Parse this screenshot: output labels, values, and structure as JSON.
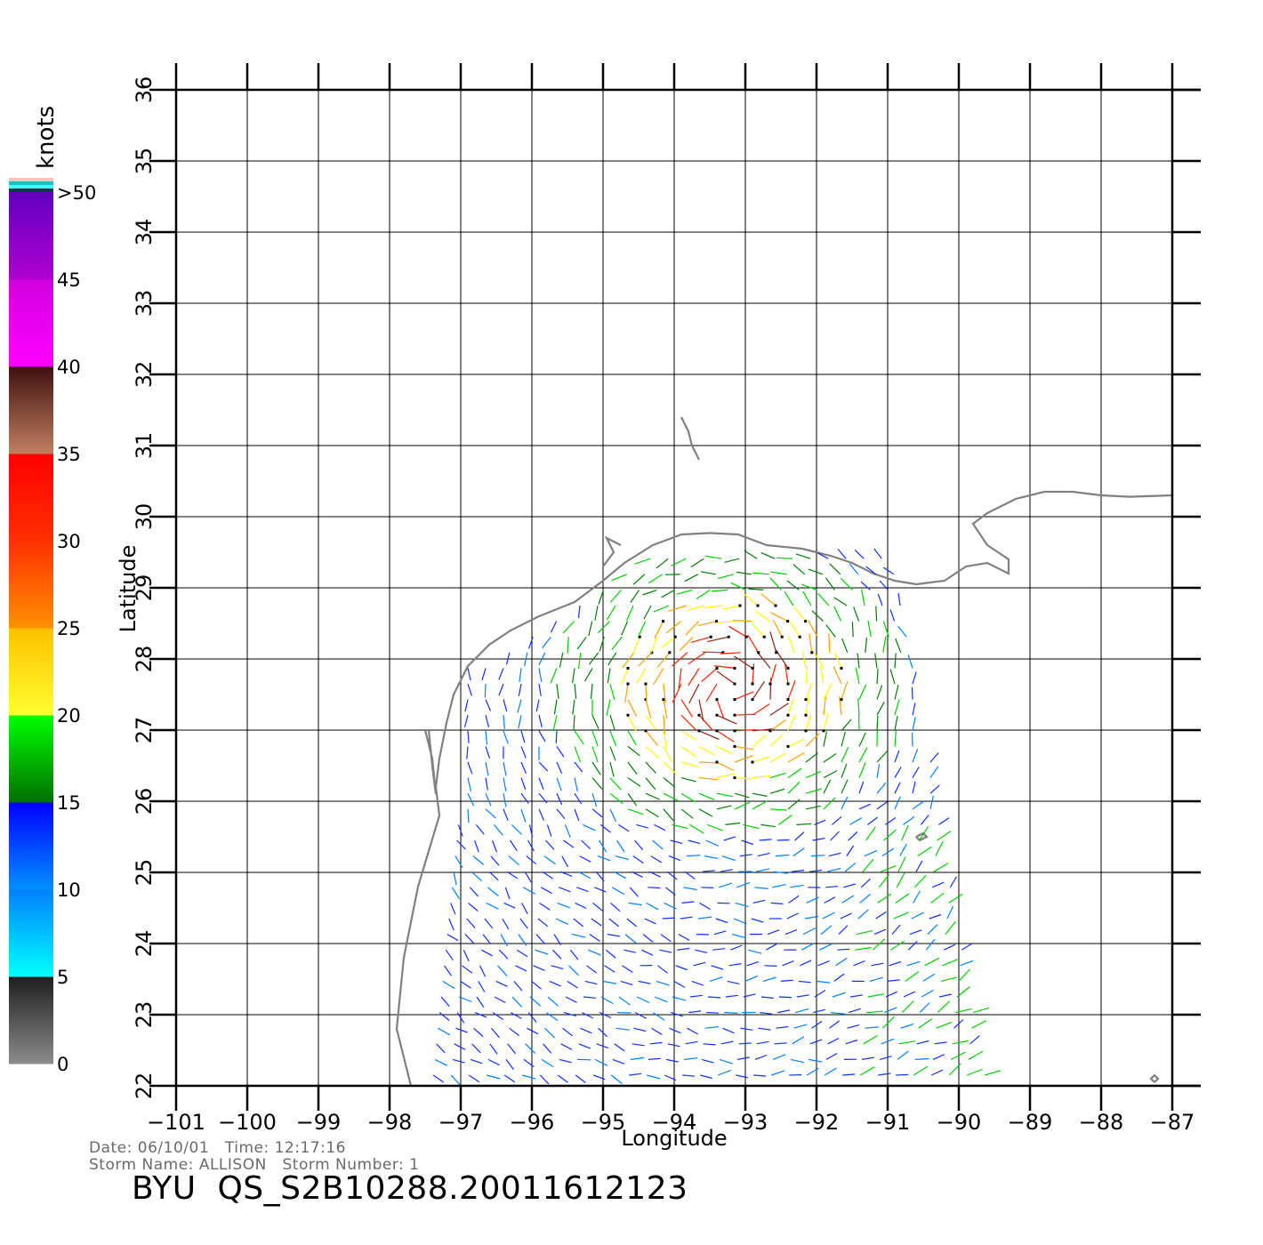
{
  "map": {
    "xlabel": "Longitude",
    "ylabel": "Latitude",
    "lon_range": [
      -101,
      -87
    ],
    "lat_range": [
      22,
      36
    ],
    "lon_ticks": [
      "−101",
      "−100",
      "−99",
      "−98",
      "−97",
      "−96",
      "−95",
      "−94",
      "−93",
      "−92",
      "−91",
      "−90",
      "−89",
      "−88",
      "−87"
    ],
    "lat_ticks": [
      "22",
      "23",
      "24",
      "25",
      "26",
      "27",
      "28",
      "29",
      "30",
      "31",
      "32",
      "33",
      "34",
      "35",
      "36"
    ],
    "grid": true,
    "coastline_color": "#808080",
    "gridline_color": "#000000"
  },
  "colorbar": {
    "units": "knots",
    "labels": [
      "0",
      "5",
      "10",
      "15",
      "20",
      "25",
      "30",
      "35",
      "40",
      "45",
      ">50"
    ],
    "bands": [
      {
        "from": 0,
        "to": 5,
        "colors": [
          "#8c8c8c",
          "#1e1e1e"
        ]
      },
      {
        "from": 5,
        "to": 10,
        "colors": [
          "#00ffff",
          "#0080ff"
        ]
      },
      {
        "from": 10,
        "to": 15,
        "colors": [
          "#0090ff",
          "#0000ff"
        ]
      },
      {
        "from": 15,
        "to": 20,
        "colors": [
          "#007000",
          "#00ff00"
        ]
      },
      {
        "from": 20,
        "to": 25,
        "colors": [
          "#ffff30",
          "#ffc000"
        ]
      },
      {
        "from": 25,
        "to": 30,
        "colors": [
          "#ff9000",
          "#ff3000"
        ]
      },
      {
        "from": 30,
        "to": 35,
        "colors": [
          "#ff3000",
          "#ff0000"
        ]
      },
      {
        "from": 35,
        "to": 40,
        "colors": [
          "#c08060",
          "#401010"
        ]
      },
      {
        "from": 40,
        "to": 45,
        "colors": [
          "#ff00ff",
          "#d000e0"
        ]
      },
      {
        "from": 45,
        "to": 50,
        "colors": [
          "#b000d0",
          "#6000c0"
        ]
      }
    ],
    "overflow_colors": [
      "#ffc0c0",
      "#20c0c0",
      "#40ffff",
      "#004040"
    ]
  },
  "info": {
    "date_label": "Date:",
    "date": "06/10/01",
    "time_label": "Time:",
    "time": "12:17:16",
    "storm_name_label": "Storm Name:",
    "storm_name": "ALLISON",
    "storm_number_label": "Storm Number:",
    "storm_number": "1",
    "title": "BYU  QS_S2B10288.20011612123"
  },
  "wind_field": {
    "description_colors": [
      "#1030ff",
      "#0080ff",
      "#008000",
      "#00d000",
      "#ffff00",
      "#ffa000",
      "#ff2000",
      "#902010"
    ],
    "swath_lon_range": [
      -97.5,
      -89.5
    ],
    "swath_lat_range": [
      22,
      29.5
    ]
  }
}
